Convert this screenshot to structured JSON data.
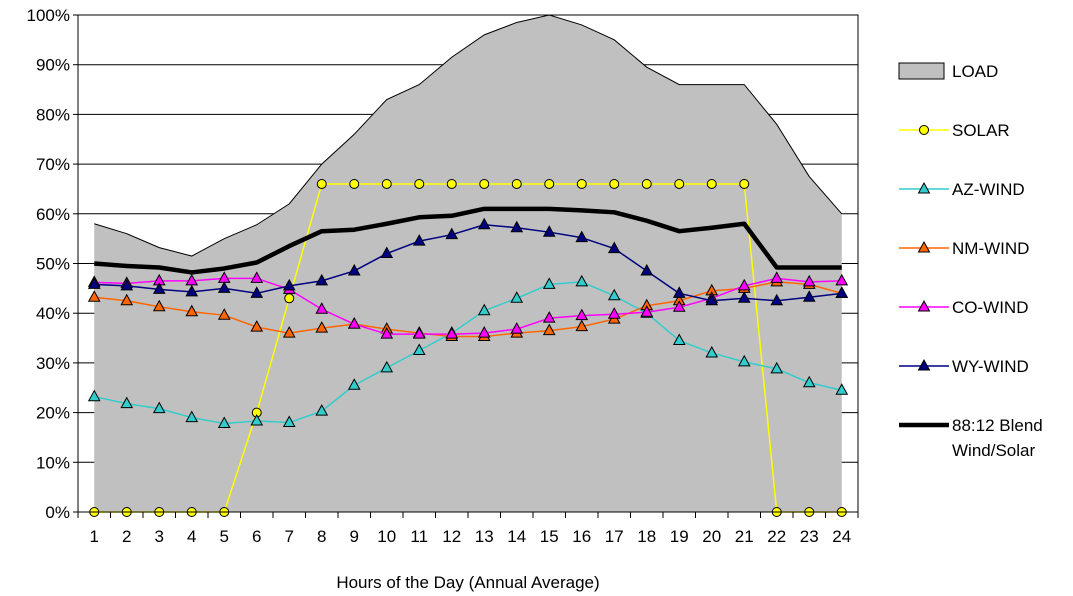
{
  "chart_data": {
    "type": "line",
    "title": "",
    "xlabel": "Hours of the Day (Annual Average)",
    "ylabel": "",
    "categories": [
      "1",
      "2",
      "3",
      "4",
      "5",
      "6",
      "7",
      "8",
      "9",
      "10",
      "11",
      "12",
      "13",
      "14",
      "15",
      "16",
      "17",
      "18",
      "19",
      "20",
      "21",
      "22",
      "23",
      "24"
    ],
    "ylim": [
      0,
      100
    ],
    "y_ticks": [
      "0%",
      "10%",
      "20%",
      "30%",
      "40%",
      "50%",
      "60%",
      "70%",
      "80%",
      "90%",
      "100%"
    ],
    "grid": "horizontal",
    "legend_position": "right",
    "series": [
      {
        "name": "LOAD",
        "style": "area",
        "color": "#c0c0c0",
        "values": [
          58,
          56,
          53.2,
          51.5,
          55,
          57.8,
          62,
          70,
          76,
          83,
          86,
          91.5,
          96,
          98.5,
          100,
          98,
          95,
          89.5,
          86,
          86,
          86,
          78,
          67.5,
          60
        ]
      },
      {
        "name": "SOLAR",
        "style": "line",
        "marker": "circle",
        "color": "#ffff00",
        "values": [
          0,
          0,
          0,
          0,
          0,
          20,
          43,
          66,
          66,
          66,
          66,
          66,
          66,
          66,
          66,
          66,
          66,
          66,
          66,
          66,
          66,
          0,
          0,
          0
        ]
      },
      {
        "name": "AZ-WIND",
        "style": "line",
        "marker": "triangle",
        "color": "#33cccc",
        "values": [
          23.2,
          21.8,
          20.8,
          19,
          17.8,
          18.3,
          18,
          20.3,
          25.5,
          29,
          32.5,
          36,
          40.5,
          43,
          45.8,
          46.3,
          43.5,
          40,
          34.5,
          32,
          30.2,
          28.8,
          26,
          24.5
        ]
      },
      {
        "name": "NM-WIND",
        "style": "line",
        "marker": "triangle",
        "color": "#ff6600",
        "values": [
          43.2,
          42.5,
          41.3,
          40.3,
          39.6,
          37.2,
          36,
          37,
          37.8,
          36.8,
          36,
          35.3,
          35.3,
          36,
          36.5,
          37.3,
          38.8,
          41.5,
          42.5,
          44.5,
          45,
          46.3,
          45.8,
          44
        ]
      },
      {
        "name": "CO-WIND",
        "style": "line",
        "marker": "triangle",
        "color": "#ff00ff",
        "values": [
          46.2,
          46,
          46.5,
          46.5,
          47,
          47,
          44.8,
          40.8,
          37.8,
          35.8,
          35.8,
          35.8,
          36,
          36.8,
          39,
          39.5,
          39.8,
          40.2,
          41.2,
          43,
          45.5,
          47,
          46.3,
          46.5
        ]
      },
      {
        "name": "WY-WIND",
        "style": "line",
        "marker": "triangle",
        "color": "#000080",
        "values": [
          45.8,
          45.5,
          44.8,
          44.3,
          45,
          44,
          45.5,
          46.5,
          48.5,
          52,
          54.5,
          55.8,
          57.8,
          57.2,
          56.3,
          55.2,
          53,
          48.5,
          44,
          42.5,
          43,
          42.5,
          43.2,
          44
        ]
      },
      {
        "name": "88:12 Blend Wind/Solar",
        "legend_lines": [
          "88:12 Blend",
          "Wind/Solar"
        ],
        "style": "line",
        "marker": "none",
        "color": "#000000",
        "values": [
          50,
          49.5,
          49.2,
          48.2,
          49,
          50.2,
          53.5,
          56.5,
          56.8,
          58,
          59.3,
          59.6,
          61,
          61,
          61,
          60.7,
          60.3,
          58.6,
          56.5,
          57.2,
          58,
          49.2,
          49.2,
          49.2
        ]
      }
    ]
  }
}
